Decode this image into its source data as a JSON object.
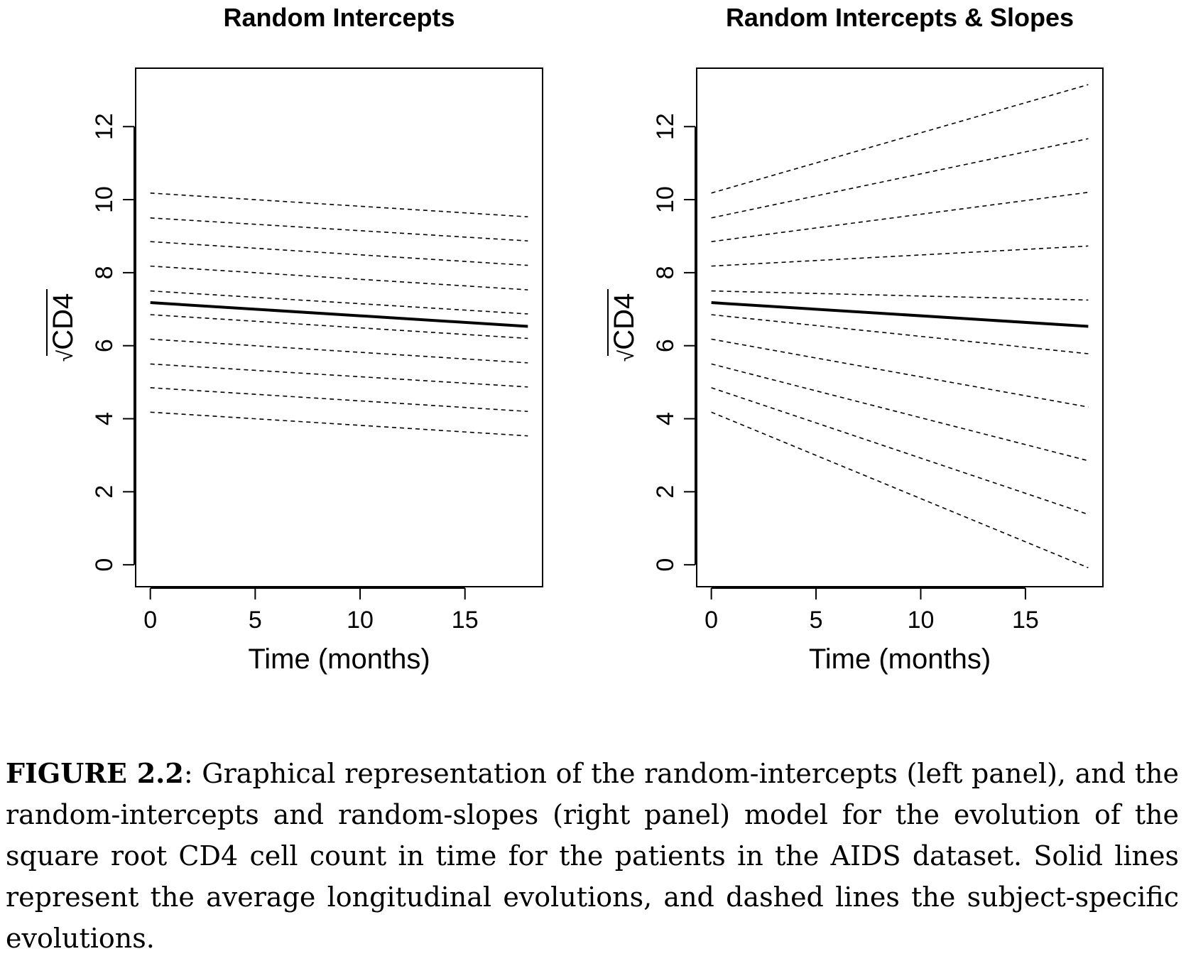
{
  "chart_data": [
    {
      "type": "line",
      "title": "Random Intercepts",
      "xlabel": "Time (months)",
      "ylabel": "CD4",
      "ylabel_prefix": "√",
      "xlim": [
        -0.7,
        18.7
      ],
      "ylim": [
        -0.6,
        13.6
      ],
      "xticks": [
        "0",
        "5",
        "10",
        "15"
      ],
      "yticks": [
        "0",
        "2",
        "4",
        "6",
        "8",
        "10",
        "12"
      ],
      "x": [
        0,
        18
      ],
      "series": [
        {
          "style": "solid",
          "values": [
            7.18,
            6.53
          ]
        },
        {
          "style": "dashed",
          "values": [
            10.18,
            9.53
          ]
        },
        {
          "style": "dashed",
          "values": [
            9.5,
            8.87
          ]
        },
        {
          "style": "dashed",
          "values": [
            8.85,
            8.2
          ]
        },
        {
          "style": "dashed",
          "values": [
            8.18,
            7.53
          ]
        },
        {
          "style": "dashed",
          "values": [
            7.5,
            6.87
          ]
        },
        {
          "style": "dashed",
          "values": [
            6.85,
            6.2
          ]
        },
        {
          "style": "dashed",
          "values": [
            6.18,
            5.53
          ]
        },
        {
          "style": "dashed",
          "values": [
            5.5,
            4.87
          ]
        },
        {
          "style": "dashed",
          "values": [
            4.85,
            4.2
          ]
        },
        {
          "style": "dashed",
          "values": [
            4.18,
            3.53
          ]
        }
      ]
    },
    {
      "type": "line",
      "title": "Random Intercepts & Slopes",
      "xlabel": "Time (months)",
      "ylabel": "CD4",
      "ylabel_prefix": "√",
      "xlim": [
        -0.7,
        18.7
      ],
      "ylim": [
        -0.6,
        13.6
      ],
      "xticks": [
        "0",
        "5",
        "10",
        "15"
      ],
      "yticks": [
        "0",
        "2",
        "4",
        "6",
        "8",
        "10",
        "12"
      ],
      "x": [
        0,
        18
      ],
      "series": [
        {
          "style": "solid",
          "values": [
            7.18,
            6.53
          ]
        },
        {
          "style": "dashed",
          "values": [
            10.18,
            13.15
          ]
        },
        {
          "style": "dashed",
          "values": [
            9.5,
            11.67
          ]
        },
        {
          "style": "dashed",
          "values": [
            8.85,
            10.2
          ]
        },
        {
          "style": "dashed",
          "values": [
            8.18,
            8.73
          ]
        },
        {
          "style": "dashed",
          "values": [
            7.5,
            7.25
          ]
        },
        {
          "style": "dashed",
          "values": [
            6.85,
            5.78
          ]
        },
        {
          "style": "dashed",
          "values": [
            6.18,
            4.32
          ]
        },
        {
          "style": "dashed",
          "values": [
            5.5,
            2.85
          ]
        },
        {
          "style": "dashed",
          "values": [
            4.85,
            1.38
          ]
        },
        {
          "style": "dashed",
          "values": [
            4.18,
            -0.08
          ]
        }
      ]
    }
  ],
  "caption": {
    "label": "FIGURE 2.2",
    "text": ": Graphical representation of the random-intercepts (left panel), and the random-intercepts and random-slopes (right panel) model for the evolution of the square root CD4 cell count in time for the patients in the AIDS dataset. Solid lines represent the average longitudinal evolutions, and dashed lines the subject-specific evolutions."
  }
}
